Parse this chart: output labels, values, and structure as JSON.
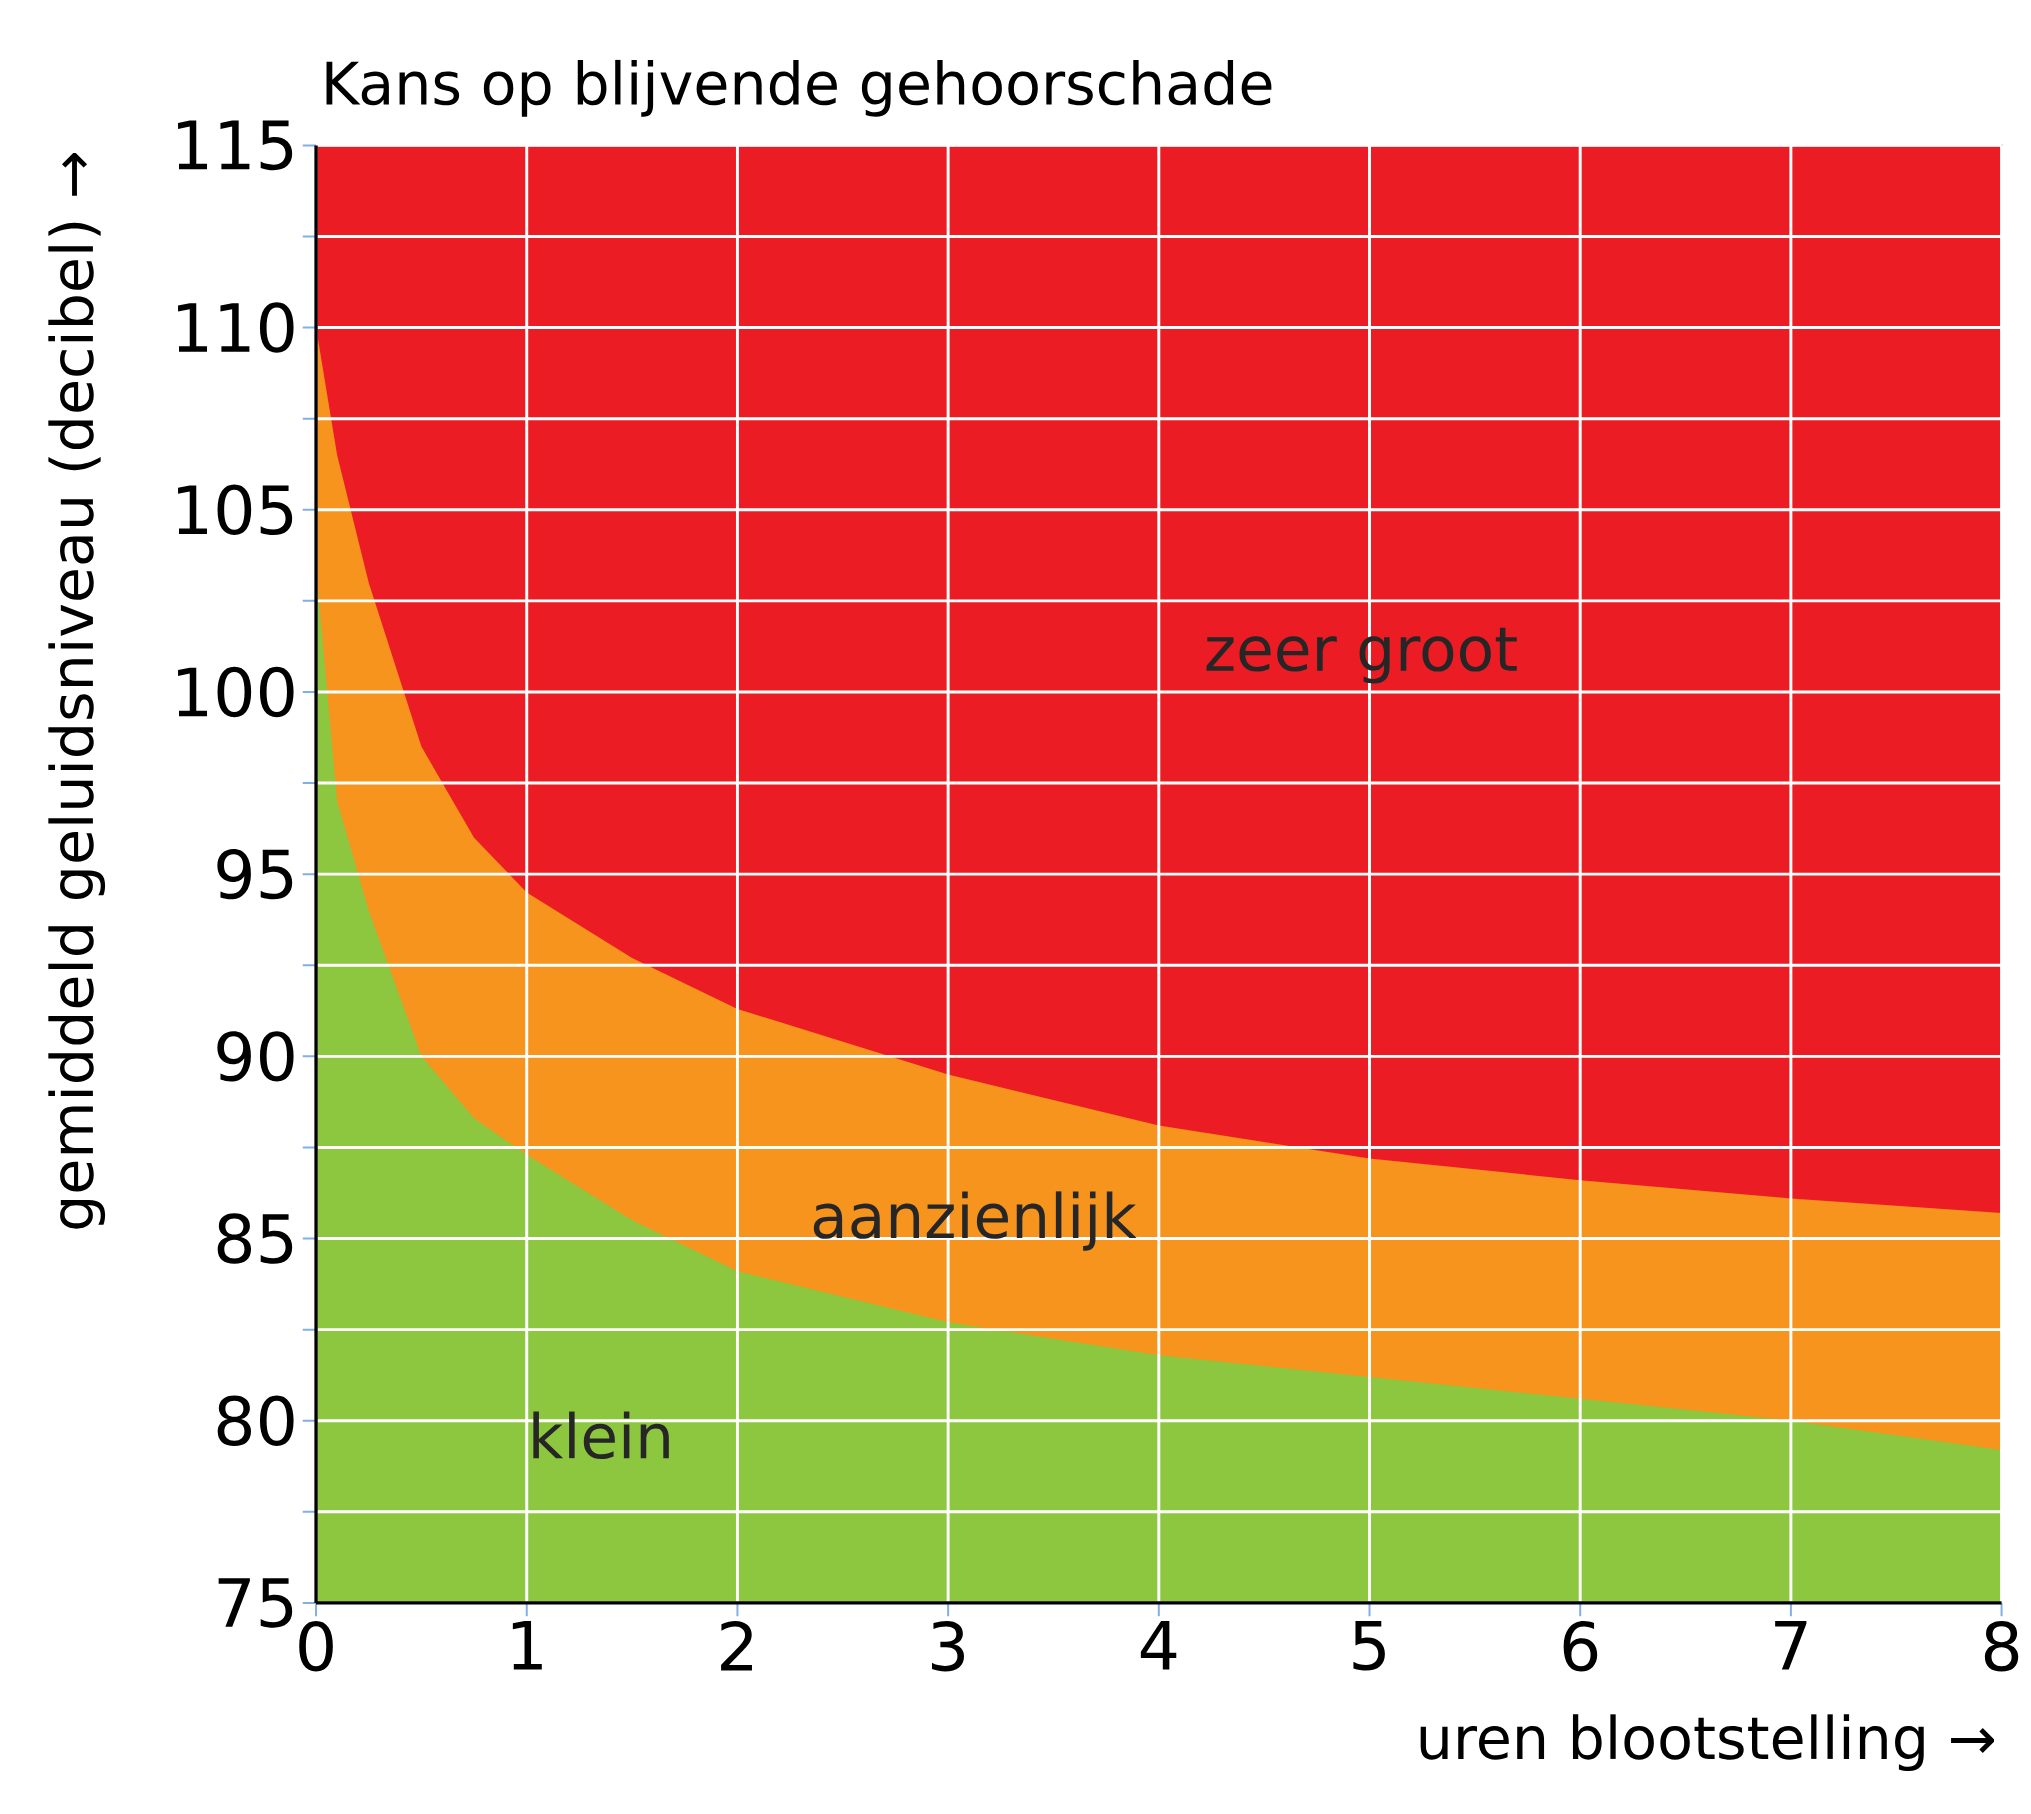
{
  "chart_data": {
    "type": "area",
    "title": "Kans op blijvende gehoorschade",
    "xlabel": "uren blootstelling →",
    "ylabel": "gemiddeld geluidsniveau (decibel) →",
    "x": [
      0,
      0.1,
      0.25,
      0.5,
      0.75,
      1,
      1.5,
      2,
      3,
      4,
      5,
      6,
      7,
      8
    ],
    "series": [
      {
        "color": "#8dc63f",
        "values": [
          103.4,
          97,
          94,
          90,
          88.3,
          87.3,
          85.5,
          84.1,
          82.7,
          81.8,
          81.2,
          80.6,
          80,
          79.2
        ]
      },
      {
        "color": "#f7941d",
        "values": [
          110,
          106.5,
          103,
          98.5,
          96,
          94.5,
          92.7,
          91.3,
          89.5,
          88.1,
          87.2,
          86.6,
          86.1,
          85.7
        ]
      }
    ],
    "bands": [
      {
        "axis": "y",
        "from": 75,
        "to": 115,
        "color": "#ec1c24"
      }
    ],
    "xlim": [
      0,
      8
    ],
    "ylim": [
      75,
      115
    ],
    "xticks": [
      0,
      1,
      2,
      3,
      4,
      5,
      6,
      7,
      8
    ],
    "yticks": [
      75,
      {
        "value": 77.5,
        "label": null
      },
      80,
      {
        "value": 82.5,
        "label": null
      },
      85,
      {
        "value": 87.5,
        "label": null
      },
      90,
      {
        "value": 92.5,
        "label": null
      },
      95,
      {
        "value": 97.5,
        "label": null
      },
      100,
      {
        "value": 102.5,
        "label": null
      },
      105,
      {
        "value": 107.5,
        "label": null
      },
      110,
      {
        "value": 112.5,
        "label": null
      },
      115
    ],
    "grid": true,
    "annotations": [
      "klein",
      "aanzienlijk",
      "zeer groot"
    ]
  }
}
